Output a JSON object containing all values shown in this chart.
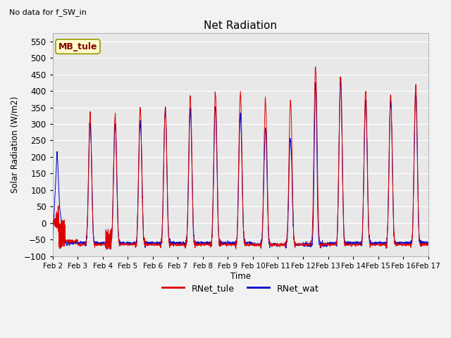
{
  "title": "Net Radiation",
  "subtitle": "No data for f_SW_in",
  "ylabel": "Solar Radiation (W/m2)",
  "xlabel": "Time",
  "ylim": [
    -100,
    575
  ],
  "yticks": [
    -100,
    -50,
    0,
    50,
    100,
    150,
    200,
    250,
    300,
    350,
    400,
    450,
    500,
    550
  ],
  "fig_bg_color": "#f2f2f2",
  "plot_bg_color": "#e8e8e8",
  "legend_label1": "RNet_tule",
  "legend_label2": "RNet_wat",
  "legend_color1": "#dd0000",
  "legend_color2": "#0000cc",
  "textbox_label": "MB_tule",
  "textbox_facecolor": "#ffffcc",
  "textbox_edgecolor": "#999900",
  "n_days": 15,
  "start_day": 2,
  "points_per_day": 144
}
